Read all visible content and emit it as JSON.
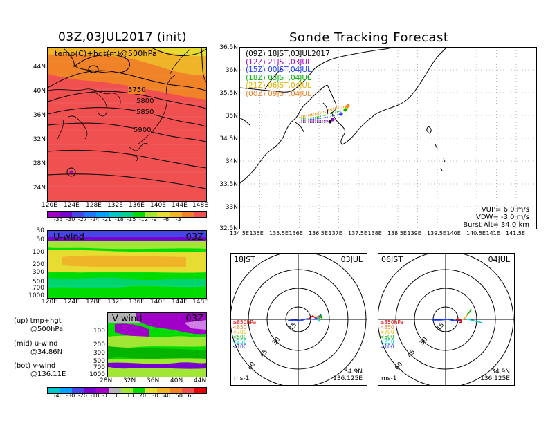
{
  "titles": {
    "left": "03Z,03JUL2017 (init)",
    "right": "Sonde Tracking Forecast"
  },
  "map_panel": {
    "label": "temp(C)+hgt(m)@500hPa",
    "contour_labels": [
      "5750",
      "5800",
      "5850",
      "5900"
    ],
    "lat_ticks": [
      "44N",
      "40N",
      "36N",
      "32N",
      "28N",
      "24N"
    ],
    "lon_ticks": [
      "120E",
      "124E",
      "128E",
      "132E",
      "136E",
      "140E",
      "144E",
      "148E"
    ]
  },
  "temp_colorbar": {
    "labels": [
      "-33",
      "-30",
      "-27",
      "-24",
      "-21",
      "-18",
      "-15",
      "-12",
      "-9",
      "-6",
      "-3"
    ],
    "colors": [
      "#a000c8",
      "#7800d0",
      "#4646e6",
      "#1e78ff",
      "#00a0ff",
      "#00c8c8",
      "#00d28c",
      "#00dc00",
      "#a0e632",
      "#e6dc32",
      "#f0b428",
      "#f08228",
      "#f05050"
    ]
  },
  "uwind_panel": {
    "label": "U-wind",
    "time": "03Z",
    "p_ticks": [
      "30",
      "50",
      "100",
      "200",
      "300",
      "500",
      "700",
      "1000"
    ],
    "lon_ticks": [
      "120E",
      "124E",
      "128E",
      "132E",
      "136E",
      "140E",
      "144E",
      "148E"
    ]
  },
  "vwind_panel": {
    "label": "V-wind",
    "time": "03Z",
    "p_ticks": [
      "100",
      "200",
      "300",
      "500",
      "700",
      "1000"
    ],
    "lat_ticks": [
      "28N",
      "32N",
      "36N",
      "40N",
      "44N"
    ]
  },
  "wind_colorbar": {
    "labels": [
      "-40",
      "-30",
      "-20",
      "-10",
      "-1",
      "1",
      "10",
      "20",
      "30",
      "40",
      "50",
      "60"
    ],
    "colors": [
      "#00c8c8",
      "#00a0ff",
      "#4646e6",
      "#7800d0",
      "#a000c8",
      "#b4b4b4",
      "#a0e632",
      "#00dc00",
      "#e6dc32",
      "#f0b428",
      "#f08228",
      "#f05050",
      "#e60000"
    ]
  },
  "notes": [
    {
      "a": "(up) tmp+hgt",
      "b": "@500hPa"
    },
    {
      "a": "(mid) u-wind",
      "b": "@34.86N"
    },
    {
      "a": "(bot) v-wind",
      "b": "@136.11E"
    }
  ],
  "legend": [
    {
      "text": "(09Z)  18JST,03JUL2017",
      "color": "#000000"
    },
    {
      "text": "(12Z)  21JST,03JUL",
      "color": "#a000c8"
    },
    {
      "text": "(15Z)  00JST,04JUL",
      "color": "#1e3cff"
    },
    {
      "text": "(18Z)  03JST,04JUL",
      "color": "#00b400"
    },
    {
      "text": "(21Z)  06JST,04JUL",
      "color": "#e6b400"
    },
    {
      "text": "(00Z)  09JST,04JUL",
      "color": "#f08228"
    }
  ],
  "track_params": {
    "vup": "VUP=  6.0  m/s",
    "vdw": "VDW= -3.0  m/s",
    "burst": "Burst Alt=  34.0  km"
  },
  "track_axes": {
    "lat_ticks": [
      "36.5N",
      "36N",
      "35.5N",
      "35N",
      "34.5N",
      "34N",
      "33.5N",
      "33N",
      "32.5N"
    ],
    "lon_ticks": [
      "134.5E",
      "135E",
      "135.5E",
      "136E",
      "136.5E",
      "137E",
      "137.5E",
      "138E",
      "138.5E",
      "139E",
      "139.5E",
      "140E",
      "140.5E",
      "141E",
      "141.5E"
    ]
  },
  "hodo_left": {
    "time": "18JST",
    "date": "03JUL",
    "rings": [
      "15",
      "30",
      "45",
      "60"
    ],
    "levels": [
      {
        "text": "≥850hPa",
        "color": "#e60000"
      },
      {
        "text": "<850",
        "color": "#f08228"
      },
      {
        "text": "<700",
        "color": "#e6b400"
      },
      {
        "text": "<500",
        "color": "#00b400"
      },
      {
        "text": "<250",
        "color": "#00c8c8"
      },
      {
        "text": "<100",
        "color": "#1e3cff"
      }
    ],
    "lat": "34.9N",
    "lon": "136.125E",
    "unit": "ms-1"
  },
  "hodo_right": {
    "time": "06JST",
    "date": "04JUL",
    "rings": [
      "15",
      "30",
      "45",
      "60"
    ],
    "lat": "34.9N",
    "lon": "136.125E",
    "unit": "ms-1"
  }
}
